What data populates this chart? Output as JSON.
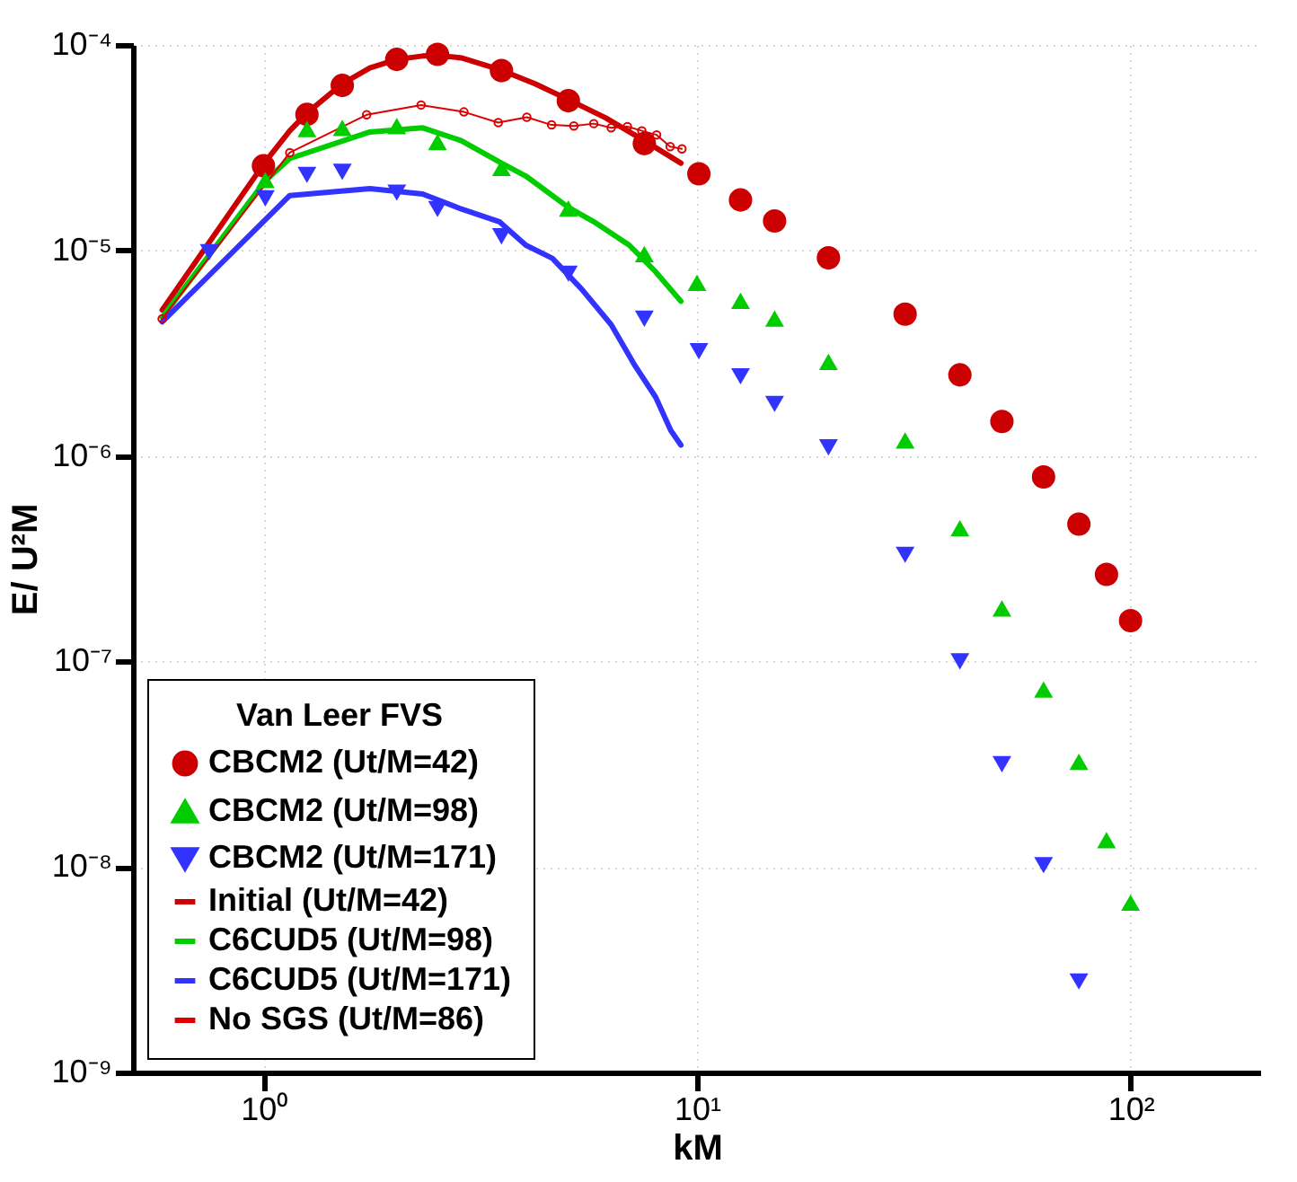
{
  "chart_data": {
    "type": "scatter",
    "xlabel": "kM",
    "ylabel": "E/ U²M",
    "legend_title": "Van Leer FVS",
    "legend": "bottom left",
    "grid": true,
    "log": "xy",
    "xlim": [
      0.5,
      200
    ],
    "xticks": [
      {
        "value": 1,
        "label": "10⁰"
      },
      {
        "value": 10,
        "label": "10¹"
      },
      {
        "value": 100,
        "label": "10²"
      }
    ],
    "ylim": [
      1e-09,
      0.0001
    ],
    "yticks": [
      {
        "value": 1e-09,
        "label": "10⁻⁹"
      },
      {
        "value": 1e-08,
        "label": "10⁻⁸"
      },
      {
        "value": 1e-07,
        "label": "10⁻⁷"
      },
      {
        "value": 1e-06,
        "label": "10⁻⁶"
      },
      {
        "value": 1e-05,
        "label": "10⁻⁵"
      },
      {
        "value": 0.0001,
        "label": "10⁻⁴"
      }
    ],
    "series": [
      {
        "name": "CBCM2 (Ut/M=42)",
        "marker": "circle",
        "color": "#cc0000",
        "x": [
          1,
          1.26,
          1.52,
          2.03,
          2.52,
          3.54,
          5.05,
          7.56,
          10.1,
          12.6,
          15.1,
          20.1,
          30.2,
          40.4,
          50.5,
          63,
          76,
          88,
          100
        ],
        "values": [
          2.58e-05,
          4.59e-05,
          6.35e-05,
          8.5e-05,
          9e-05,
          7.5e-05,
          5.35e-05,
          3.31e-05,
          2.36e-05,
          1.76e-05,
          1.39e-05,
          9.2e-06,
          4.9e-06,
          2.48e-06,
          1.47e-06,
          7.9e-07,
          4.66e-07,
          2.65e-07,
          1.58e-07
        ]
      },
      {
        "name": "CBCM2 (Ut/M=98)",
        "marker": "triangle",
        "color": "#00cc00",
        "x": [
          1.01,
          1.26,
          1.52,
          2.03,
          2.52,
          3.54,
          5.05,
          7.56,
          10,
          12.6,
          15.1,
          20.1,
          30.2,
          40.4,
          50.5,
          63,
          76,
          88,
          100
        ],
        "values": [
          2.2e-05,
          3.9e-05,
          3.95e-05,
          4.03e-05,
          3.37e-05,
          2.52e-05,
          1.6e-05,
          9.6e-06,
          6.95e-06,
          5.69e-06,
          4.66e-06,
          2.87e-06,
          1.19e-06,
          4.45e-07,
          1.81e-07,
          7.3e-08,
          3.25e-08,
          1.35e-08,
          6.7e-09
        ]
      },
      {
        "name": "CBCM2 (Ut/M=171)",
        "marker": "triangle-down",
        "color": "#3333ff",
        "x": [
          0.75,
          1.01,
          1.26,
          1.52,
          2.03,
          2.52,
          3.54,
          5.05,
          7.56,
          10.1,
          12.6,
          15.1,
          20.1,
          30.2,
          40.4,
          50.5,
          63,
          76
        ],
        "values": [
          9.8e-06,
          1.79e-05,
          2.33e-05,
          2.41e-05,
          1.91e-05,
          1.59e-05,
          1.17e-05,
          7.7e-06,
          4.65e-06,
          3.23e-06,
          2.44e-06,
          1.79e-06,
          1.1e-06,
          3.3e-07,
          1e-07,
          3.16e-08,
          1.02e-08,
          2.77e-09
        ]
      },
      {
        "name": "Initial (Ut/M=42)",
        "type": "line",
        "marker": "none",
        "color": "#cc0000",
        "x": [
          0.584,
          1.01,
          1.15,
          1.26,
          1.52,
          1.76,
          2.03,
          2.33,
          2.52,
          2.86,
          3.54,
          4.23,
          5.05,
          6.15,
          7.56,
          9.18
        ],
        "values": [
          5.13e-06,
          2.7e-05,
          3.82e-05,
          4.66e-05,
          6.47e-05,
          7.73e-05,
          8.5e-05,
          8.83e-05,
          8.88e-05,
          8.65e-05,
          7.53e-05,
          6.47e-05,
          5.42e-05,
          4.42e-05,
          3.42e-05,
          2.66e-05
        ]
      },
      {
        "name": "C6CUD5 (Ut/M=98)",
        "type": "line",
        "marker": "none",
        "color": "#00cc00",
        "x": [
          0.584,
          1.01,
          1.15,
          1.76,
          2.33,
          2.86,
          3.54,
          4.03,
          5.05,
          5.78,
          6.98,
          8.03,
          9.18
        ],
        "values": [
          4.73e-06,
          2.18e-05,
          2.8e-05,
          3.77e-05,
          3.95e-05,
          3.42e-05,
          2.66e-05,
          2.3e-05,
          1.62e-05,
          1.38e-05,
          1.06e-05,
          7.86e-06,
          5.66e-06
        ]
      },
      {
        "name": "C6CUD5 (Ut/M=171)",
        "type": "line",
        "marker": "none",
        "color": "#3333ff",
        "x": [
          0.584,
          1.15,
          1.76,
          2.33,
          2.86,
          3.5,
          4.03,
          4.64,
          5.43,
          6.34,
          7.2,
          8.03,
          8.7,
          9.18
        ],
        "values": [
          4.49e-06,
          1.85e-05,
          2e-05,
          1.88e-05,
          1.59e-05,
          1.38e-05,
          1.06e-05,
          9.15e-06,
          6.45e-06,
          4.35e-06,
          2.74e-06,
          1.93e-06,
          1.33e-06,
          1.13e-06
        ]
      },
      {
        "name": "No SGS (Ut/M=86)",
        "type": "line",
        "marker": "circle",
        "color": "#dd0000",
        "x": [
          0.584,
          1.15,
          1.73,
          2.31,
          2.9,
          3.48,
          4.05,
          4.62,
          5.2,
          5.78,
          6.34,
          6.91,
          7.46,
          8.07,
          8.67,
          9.23
        ],
        "values": [
          4.65e-06,
          2.99e-05,
          4.57e-05,
          5.1e-05,
          4.72e-05,
          4.19e-05,
          4.45e-05,
          4.08e-05,
          4.03e-05,
          4.14e-05,
          3.95e-05,
          4e-05,
          3.82e-05,
          3.65e-05,
          3.2e-05,
          3.12e-05
        ]
      }
    ]
  }
}
